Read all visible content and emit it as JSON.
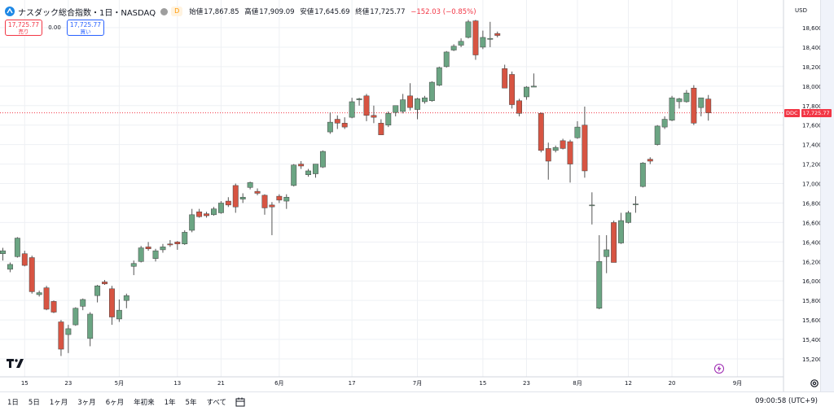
{
  "header": {
    "symbol_name": "ナスダック総合指数・1日・NASDAQ",
    "d_badge": "D",
    "ohlc": {
      "open_label": "始値",
      "open": "17,867.85",
      "high_label": "高値",
      "high": "17,909.09",
      "low_label": "安値",
      "low": "17,645.69",
      "close_label": "終値",
      "close": "17,725.77",
      "change": "−152.03 (−0.85%)"
    }
  },
  "trade": {
    "sell_price": "17,725.77",
    "sell_label": "売り",
    "spread": "0.00",
    "buy_price": "17,725.77",
    "buy_label": "買い"
  },
  "axis": {
    "currency": "USD"
  },
  "price_tag": {
    "countdown": "DDC",
    "price": "17,725.77"
  },
  "bottom_bar": {
    "ranges": [
      "1日",
      "5日",
      "1ヶ月",
      "3ヶ月",
      "6ヶ月",
      "年初来",
      "1年",
      "5年",
      "すべて"
    ],
    "clock": "09:00:58 (UTC+9)"
  },
  "colors": {
    "up": "#6ba583",
    "down": "#d75442",
    "wick": "#555555",
    "last_price": "#f23645",
    "grid": "#eef0f4"
  },
  "chart_data": {
    "type": "candlestick",
    "title": "",
    "xlabel": "",
    "ylabel": "",
    "ylim": [
      15100,
      18800
    ],
    "yticks": [
      15200,
      15400,
      15600,
      15800,
      16000,
      16200,
      16400,
      16600,
      16800,
      17000,
      17200,
      17400,
      17600,
      17800,
      18000,
      18200,
      18400,
      18600
    ],
    "xticks": [
      {
        "label": "15",
        "index": 3
      },
      {
        "label": "23",
        "index": 9
      },
      {
        "label": "5月",
        "index": 16
      },
      {
        "label": "13",
        "index": 24
      },
      {
        "label": "21",
        "index": 30
      },
      {
        "label": "6月",
        "index": 38
      },
      {
        "label": "17",
        "index": 48
      },
      {
        "label": "7月",
        "index": 57
      },
      {
        "label": "15",
        "index": 66
      },
      {
        "label": "23",
        "index": 72
      },
      {
        "label": "8月",
        "index": 79
      },
      {
        "label": "12",
        "index": 86
      },
      {
        "label": "20",
        "index": 92
      },
      {
        "label": "9月",
        "index": 101
      }
    ],
    "last_price": 17725.77,
    "candles": [
      {
        "o": 16280,
        "h": 16340,
        "l": 16210,
        "c": 16310
      },
      {
        "o": 16120,
        "h": 16190,
        "l": 16090,
        "c": 16170
      },
      {
        "o": 16250,
        "h": 16450,
        "l": 16240,
        "c": 16440
      },
      {
        "o": 16280,
        "h": 16310,
        "l": 16150,
        "c": 16160
      },
      {
        "o": 16240,
        "h": 16260,
        "l": 15870,
        "c": 15890
      },
      {
        "o": 15860,
        "h": 15900,
        "l": 15840,
        "c": 15880
      },
      {
        "o": 15930,
        "h": 15950,
        "l": 15700,
        "c": 15710
      },
      {
        "o": 15790,
        "h": 15800,
        "l": 15670,
        "c": 15680
      },
      {
        "o": 15580,
        "h": 15600,
        "l": 15230,
        "c": 15300
      },
      {
        "o": 15450,
        "h": 15550,
        "l": 15260,
        "c": 15510
      },
      {
        "o": 15550,
        "h": 15730,
        "l": 15540,
        "c": 15720
      },
      {
        "o": 15740,
        "h": 15820,
        "l": 15700,
        "c": 15810
      },
      {
        "o": 15410,
        "h": 15680,
        "l": 15330,
        "c": 15660
      },
      {
        "o": 15850,
        "h": 15960,
        "l": 15780,
        "c": 15950
      },
      {
        "o": 15990,
        "h": 16010,
        "l": 15960,
        "c": 15970
      },
      {
        "o": 15920,
        "h": 15950,
        "l": 15550,
        "c": 15630
      },
      {
        "o": 15610,
        "h": 15810,
        "l": 15580,
        "c": 15700
      },
      {
        "o": 15800,
        "h": 15870,
        "l": 15720,
        "c": 15850
      },
      {
        "o": 16150,
        "h": 16210,
        "l": 16060,
        "c": 16180
      },
      {
        "o": 16200,
        "h": 16360,
        "l": 16190,
        "c": 16340
      },
      {
        "o": 16350,
        "h": 16400,
        "l": 16310,
        "c": 16330
      },
      {
        "o": 16230,
        "h": 16330,
        "l": 16200,
        "c": 16310
      },
      {
        "o": 16320,
        "h": 16380,
        "l": 16290,
        "c": 16350
      },
      {
        "o": 16380,
        "h": 16420,
        "l": 16350,
        "c": 16370
      },
      {
        "o": 16400,
        "h": 16410,
        "l": 16320,
        "c": 16380
      },
      {
        "o": 16380,
        "h": 16520,
        "l": 16370,
        "c": 16500
      },
      {
        "o": 16520,
        "h": 16740,
        "l": 16500,
        "c": 16680
      },
      {
        "o": 16710,
        "h": 16740,
        "l": 16650,
        "c": 16660
      },
      {
        "o": 16690,
        "h": 16710,
        "l": 16650,
        "c": 16670
      },
      {
        "o": 16680,
        "h": 16760,
        "l": 16670,
        "c": 16740
      },
      {
        "o": 16700,
        "h": 16820,
        "l": 16690,
        "c": 16800
      },
      {
        "o": 16820,
        "h": 16860,
        "l": 16760,
        "c": 16780
      },
      {
        "o": 16980,
        "h": 17000,
        "l": 16700,
        "c": 16760
      },
      {
        "o": 16840,
        "h": 16900,
        "l": 16800,
        "c": 16860
      },
      {
        "o": 16960,
        "h": 17020,
        "l": 16940,
        "c": 17010
      },
      {
        "o": 16920,
        "h": 16950,
        "l": 16880,
        "c": 16900
      },
      {
        "o": 16880,
        "h": 16890,
        "l": 16680,
        "c": 16750
      },
      {
        "o": 16780,
        "h": 16810,
        "l": 16470,
        "c": 16760
      },
      {
        "o": 16870,
        "h": 16890,
        "l": 16800,
        "c": 16830
      },
      {
        "o": 16820,
        "h": 16890,
        "l": 16740,
        "c": 16860
      },
      {
        "o": 16980,
        "h": 17200,
        "l": 16970,
        "c": 17190
      },
      {
        "o": 17200,
        "h": 17230,
        "l": 17150,
        "c": 17180
      },
      {
        "o": 17090,
        "h": 17150,
        "l": 17070,
        "c": 17130
      },
      {
        "o": 17100,
        "h": 17200,
        "l": 17060,
        "c": 17200
      },
      {
        "o": 17170,
        "h": 17340,
        "l": 17160,
        "c": 17330
      },
      {
        "o": 17530,
        "h": 17730,
        "l": 17510,
        "c": 17630
      },
      {
        "o": 17660,
        "h": 17700,
        "l": 17560,
        "c": 17620
      },
      {
        "o": 17620,
        "h": 17680,
        "l": 17560,
        "c": 17580
      },
      {
        "o": 17680,
        "h": 17880,
        "l": 17670,
        "c": 17840
      },
      {
        "o": 17860,
        "h": 17880,
        "l": 17800,
        "c": 17870
      },
      {
        "o": 17900,
        "h": 17920,
        "l": 17640,
        "c": 17700
      },
      {
        "o": 17700,
        "h": 17800,
        "l": 17620,
        "c": 17680
      },
      {
        "o": 17620,
        "h": 17660,
        "l": 17500,
        "c": 17500
      },
      {
        "o": 17600,
        "h": 17740,
        "l": 17580,
        "c": 17720
      },
      {
        "o": 17730,
        "h": 17800,
        "l": 17690,
        "c": 17800
      },
      {
        "o": 17740,
        "h": 17920,
        "l": 17720,
        "c": 17860
      },
      {
        "o": 17900,
        "h": 18030,
        "l": 17750,
        "c": 17780
      },
      {
        "o": 17760,
        "h": 17880,
        "l": 17660,
        "c": 17870
      },
      {
        "o": 17840,
        "h": 17900,
        "l": 17820,
        "c": 17880
      },
      {
        "o": 17850,
        "h": 18050,
        "l": 17840,
        "c": 18040
      },
      {
        "o": 18010,
        "h": 18200,
        "l": 18000,
        "c": 18190
      },
      {
        "o": 18200,
        "h": 18360,
        "l": 18190,
        "c": 18350
      },
      {
        "o": 18370,
        "h": 18430,
        "l": 18360,
        "c": 18410
      },
      {
        "o": 18420,
        "h": 18490,
        "l": 18400,
        "c": 18460
      },
      {
        "o": 18500,
        "h": 18680,
        "l": 18490,
        "c": 18660
      },
      {
        "o": 18670,
        "h": 18680,
        "l": 18270,
        "c": 18320
      },
      {
        "o": 18400,
        "h": 18570,
        "l": 18380,
        "c": 18500
      },
      {
        "o": 18480,
        "h": 18660,
        "l": 18400,
        "c": 18490
      },
      {
        "o": 18540,
        "h": 18560,
        "l": 18500,
        "c": 18520
      },
      {
        "o": 18180,
        "h": 18220,
        "l": 17980,
        "c": 17980
      },
      {
        "o": 18120,
        "h": 18150,
        "l": 17770,
        "c": 17810
      },
      {
        "o": 17850,
        "h": 17870,
        "l": 17690,
        "c": 17720
      },
      {
        "o": 17890,
        "h": 18000,
        "l": 17860,
        "c": 17990
      },
      {
        "o": 17990,
        "h": 18130,
        "l": 17990,
        "c": 18000
      },
      {
        "o": 17720,
        "h": 17730,
        "l": 17320,
        "c": 17340
      },
      {
        "o": 17360,
        "h": 17420,
        "l": 17040,
        "c": 17230
      },
      {
        "o": 17340,
        "h": 17390,
        "l": 17320,
        "c": 17370
      },
      {
        "o": 17440,
        "h": 17460,
        "l": 17350,
        "c": 17360
      },
      {
        "o": 17430,
        "h": 17450,
        "l": 17010,
        "c": 17200
      },
      {
        "o": 17470,
        "h": 17640,
        "l": 17460,
        "c": 17580
      },
      {
        "o": 17600,
        "h": 17790,
        "l": 17060,
        "c": 17130
      },
      {
        "o": 16780,
        "h": 16910,
        "l": 16580,
        "c": 16780
      },
      {
        "o": 15720,
        "h": 16470,
        "l": 15710,
        "c": 16200
      },
      {
        "o": 16250,
        "h": 16470,
        "l": 16080,
        "c": 16320
      },
      {
        "o": 16600,
        "h": 16620,
        "l": 16190,
        "c": 16190
      },
      {
        "o": 16390,
        "h": 16700,
        "l": 16380,
        "c": 16620
      },
      {
        "o": 16600,
        "h": 16720,
        "l": 16590,
        "c": 16700
      },
      {
        "o": 16790,
        "h": 16870,
        "l": 16700,
        "c": 16790
      },
      {
        "o": 16970,
        "h": 17220,
        "l": 16960,
        "c": 17210
      },
      {
        "o": 17250,
        "h": 17270,
        "l": 17200,
        "c": 17230
      },
      {
        "o": 17400,
        "h": 17600,
        "l": 17390,
        "c": 17590
      },
      {
        "o": 17580,
        "h": 17690,
        "l": 17560,
        "c": 17660
      },
      {
        "o": 17650,
        "h": 17900,
        "l": 17640,
        "c": 17880
      },
      {
        "o": 17840,
        "h": 17880,
        "l": 17770,
        "c": 17870
      },
      {
        "o": 17840,
        "h": 17960,
        "l": 17830,
        "c": 17930
      },
      {
        "o": 17980,
        "h": 18010,
        "l": 17600,
        "c": 17620
      },
      {
        "o": 17780,
        "h": 17880,
        "l": 17690,
        "c": 17880
      },
      {
        "o": 17867.85,
        "h": 17909.09,
        "l": 17645.69,
        "c": 17725.77
      }
    ]
  }
}
